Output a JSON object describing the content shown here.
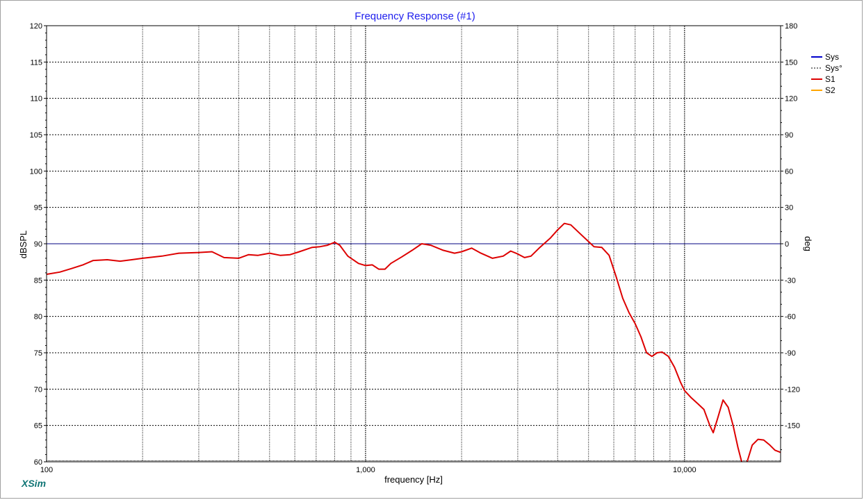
{
  "chart_data": {
    "type": "line",
    "title": "Frequency Response (#1)",
    "xlabel": "frequency [Hz]",
    "ylabel": "dBSPL",
    "y2label": "deg",
    "x_scale": "log",
    "xlim": [
      100,
      20000
    ],
    "ylim": [
      60,
      120
    ],
    "y2lim": [
      -180,
      180
    ],
    "grid": true,
    "legend_position": "top-right",
    "x_tick_labels": [
      {
        "value": 100,
        "label": "100"
      },
      {
        "value": 1000,
        "label": "1,000"
      },
      {
        "value": 10000,
        "label": "10,000"
      }
    ],
    "y_ticks": [
      60,
      65,
      70,
      75,
      80,
      85,
      90,
      95,
      100,
      105,
      110,
      115,
      120
    ],
    "y2_ticks": [
      -150,
      -120,
      -90,
      -60,
      -30,
      0,
      30,
      60,
      90,
      120,
      150,
      180
    ],
    "legend": [
      {
        "name": "Sys",
        "color": "#0000cc",
        "style": "solid"
      },
      {
        "name": "Sys°",
        "color": "#000000",
        "style": "dashed"
      },
      {
        "name": "S1",
        "color": "#dd0000",
        "style": "solid"
      },
      {
        "name": "S2",
        "color": "#ffa500",
        "style": "solid"
      }
    ],
    "series": [
      {
        "name": "S1",
        "color": "#dd0000",
        "points": [
          [
            100,
            85.8
          ],
          [
            110,
            86.1
          ],
          [
            120,
            86.6
          ],
          [
            130,
            87.1
          ],
          [
            140,
            87.7
          ],
          [
            155,
            87.8
          ],
          [
            170,
            87.6
          ],
          [
            185,
            87.8
          ],
          [
            200,
            88.0
          ],
          [
            230,
            88.3
          ],
          [
            260,
            88.7
          ],
          [
            300,
            88.8
          ],
          [
            330,
            88.9
          ],
          [
            360,
            88.1
          ],
          [
            400,
            88.0
          ],
          [
            430,
            88.5
          ],
          [
            460,
            88.4
          ],
          [
            500,
            88.7
          ],
          [
            540,
            88.4
          ],
          [
            580,
            88.5
          ],
          [
            620,
            88.9
          ],
          [
            680,
            89.5
          ],
          [
            720,
            89.6
          ],
          [
            760,
            89.8
          ],
          [
            800,
            90.2
          ],
          [
            830,
            89.8
          ],
          [
            880,
            88.3
          ],
          [
            950,
            87.3
          ],
          [
            1000,
            87.0
          ],
          [
            1050,
            87.1
          ],
          [
            1100,
            86.5
          ],
          [
            1150,
            86.5
          ],
          [
            1200,
            87.3
          ],
          [
            1300,
            88.2
          ],
          [
            1400,
            89.1
          ],
          [
            1500,
            90.0
          ],
          [
            1600,
            89.8
          ],
          [
            1750,
            89.1
          ],
          [
            1900,
            88.7
          ],
          [
            2000,
            88.9
          ],
          [
            2150,
            89.4
          ],
          [
            2300,
            88.7
          ],
          [
            2500,
            88.0
          ],
          [
            2700,
            88.3
          ],
          [
            2850,
            89.0
          ],
          [
            3000,
            88.6
          ],
          [
            3150,
            88.1
          ],
          [
            3300,
            88.3
          ],
          [
            3500,
            89.4
          ],
          [
            3800,
            90.8
          ],
          [
            4000,
            91.9
          ],
          [
            4200,
            92.8
          ],
          [
            4400,
            92.6
          ],
          [
            4700,
            91.4
          ],
          [
            5000,
            90.3
          ],
          [
            5200,
            89.6
          ],
          [
            5500,
            89.5
          ],
          [
            5800,
            88.4
          ],
          [
            6100,
            85.5
          ],
          [
            6400,
            82.5
          ],
          [
            6700,
            80.5
          ],
          [
            7000,
            79.0
          ],
          [
            7300,
            77.2
          ],
          [
            7600,
            75.0
          ],
          [
            7900,
            74.5
          ],
          [
            8200,
            75.0
          ],
          [
            8500,
            75.1
          ],
          [
            8900,
            74.5
          ],
          [
            9300,
            73.0
          ],
          [
            9700,
            71.0
          ],
          [
            10000,
            69.8
          ],
          [
            10500,
            68.8
          ],
          [
            11000,
            68.0
          ],
          [
            11500,
            67.2
          ],
          [
            12000,
            65.0
          ],
          [
            12300,
            64.0
          ],
          [
            12700,
            66.0
          ],
          [
            13200,
            68.5
          ],
          [
            13700,
            67.5
          ],
          [
            14200,
            65.0
          ],
          [
            14700,
            62.0
          ],
          [
            15100,
            60.0
          ]
        ]
      },
      {
        "name": "S1",
        "color": "#dd0000",
        "points": [
          [
            15700,
            60.0
          ],
          [
            16300,
            62.3
          ],
          [
            17000,
            63.1
          ],
          [
            17700,
            63.0
          ],
          [
            18500,
            62.3
          ],
          [
            19200,
            61.6
          ],
          [
            20000,
            61.3
          ]
        ]
      }
    ],
    "reference_lines": [
      {
        "name": "Sys°",
        "y2": 0,
        "color": "#000080"
      }
    ]
  },
  "branding": {
    "label": "XSim",
    "color": "#107575"
  }
}
